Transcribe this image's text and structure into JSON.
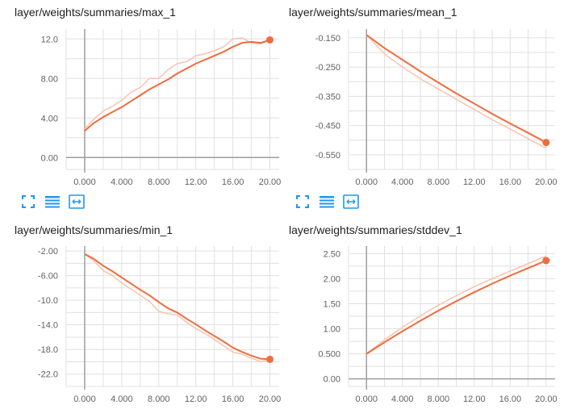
{
  "colors": {
    "line": "#ef6c3c",
    "line_raw": "#f9c3b0",
    "grid": "#e0e0e0",
    "axis": "#9e9e9e",
    "toolbar_icon": "#2196f3"
  },
  "toolbar_icons": [
    "fullscreen-icon",
    "data-table-icon",
    "fit-domain-icon"
  ],
  "charts": [
    {
      "title": "layer/weights/summaries/max_1",
      "chart_data": {
        "type": "line",
        "xlim": [
          -2,
          21
        ],
        "ylim": [
          -1.2,
          13.0
        ],
        "xticks": [
          0,
          4,
          8,
          12,
          16,
          20
        ],
        "xtick_labels": [
          "0.000",
          "4.000",
          "8.000",
          "12.00",
          "16.00",
          "20.00"
        ],
        "yticks": [
          0,
          4,
          8,
          12
        ],
        "ytick_labels": [
          "0.00",
          "4.00",
          "8.00",
          "12.0"
        ],
        "smoothed": {
          "x": [
            0,
            1,
            2,
            3,
            4,
            5,
            6,
            7,
            8,
            9,
            10,
            11,
            12,
            13,
            14,
            15,
            16,
            17,
            18,
            19,
            20
          ],
          "y": [
            2.7,
            3.5,
            4.1,
            4.6,
            5.1,
            5.7,
            6.3,
            6.9,
            7.4,
            7.9,
            8.5,
            9.0,
            9.5,
            9.9,
            10.3,
            10.7,
            11.2,
            11.6,
            11.7,
            11.6,
            11.9
          ]
        },
        "raw": {
          "x": [
            0,
            1,
            2,
            3,
            4,
            5,
            6,
            7,
            8,
            9,
            10,
            11,
            12,
            13,
            14,
            15,
            16,
            17,
            18,
            19,
            20
          ],
          "y": [
            2.9,
            3.9,
            4.7,
            5.2,
            5.8,
            6.6,
            7.1,
            8.0,
            8.0,
            8.9,
            9.5,
            9.7,
            10.3,
            10.5,
            10.8,
            11.2,
            12.0,
            12.1,
            11.6,
            11.5,
            11.9
          ]
        }
      }
    },
    {
      "title": "layer/weights/summaries/mean_1",
      "chart_data": {
        "type": "line",
        "xlim": [
          -2,
          21
        ],
        "ylim": [
          -0.6,
          -0.12
        ],
        "xticks": [
          0,
          4,
          8,
          12,
          16,
          20
        ],
        "xtick_labels": [
          "0.000",
          "4.000",
          "8.000",
          "12.00",
          "16.00",
          "20.00"
        ],
        "yticks": [
          -0.15,
          -0.25,
          -0.35,
          -0.45,
          -0.55
        ],
        "ytick_labels": [
          "-0.150",
          "-0.250",
          "-0.350",
          "-0.450",
          "-0.550"
        ],
        "smoothed": {
          "x": [
            0,
            2,
            4,
            6,
            8,
            10,
            12,
            14,
            16,
            18,
            20
          ],
          "y": [
            -0.14,
            -0.185,
            -0.225,
            -0.265,
            -0.303,
            -0.34,
            -0.375,
            -0.41,
            -0.443,
            -0.475,
            -0.508
          ]
        },
        "raw": {
          "x": [
            0,
            2,
            4,
            6,
            8,
            10,
            12,
            14,
            16,
            18,
            20
          ],
          "y": [
            -0.14,
            -0.205,
            -0.25,
            -0.29,
            -0.325,
            -0.36,
            -0.395,
            -0.43,
            -0.462,
            -0.495,
            -0.528
          ]
        }
      }
    },
    {
      "title": "layer/weights/summaries/min_1",
      "chart_data": {
        "type": "line",
        "xlim": [
          -2,
          21
        ],
        "ylim": [
          -24.0,
          -1.2
        ],
        "xticks": [
          0,
          4,
          8,
          12,
          16,
          20
        ],
        "xtick_labels": [
          "0.000",
          "4.000",
          "8.000",
          "12.00",
          "16.00",
          "20.00"
        ],
        "yticks": [
          -2,
          -6,
          -10,
          -14,
          -18,
          -22
        ],
        "ytick_labels": [
          "-2.00",
          "-6.00",
          "-10.0",
          "-14.0",
          "-18.0",
          "-22.0"
        ],
        "smoothed": {
          "x": [
            0,
            1,
            2,
            3,
            4,
            5,
            6,
            7,
            8,
            9,
            10,
            11,
            12,
            13,
            14,
            15,
            16,
            17,
            18,
            19,
            20
          ],
          "y": [
            -2.5,
            -3.3,
            -4.4,
            -5.3,
            -6.3,
            -7.3,
            -8.3,
            -9.2,
            -10.3,
            -11.3,
            -12.0,
            -13.0,
            -13.9,
            -14.9,
            -15.8,
            -16.7,
            -17.7,
            -18.4,
            -19.0,
            -19.5,
            -19.6
          ]
        },
        "raw": {
          "x": [
            0,
            1,
            2,
            3,
            4,
            5,
            6,
            7,
            8,
            9,
            10,
            11,
            12,
            13,
            14,
            15,
            16,
            17,
            18,
            19,
            20
          ],
          "y": [
            -2.5,
            -3.6,
            -5.2,
            -6.0,
            -7.2,
            -8.2,
            -9.2,
            -10.2,
            -11.8,
            -12.2,
            -12.4,
            -13.6,
            -14.6,
            -15.4,
            -16.4,
            -17.4,
            -18.4,
            -18.8,
            -19.4,
            -20.0,
            -19.6
          ]
        }
      }
    },
    {
      "title": "layer/weights/summaries/stddev_1",
      "chart_data": {
        "type": "line",
        "xlim": [
          -2,
          21
        ],
        "ylim": [
          -0.15,
          2.65
        ],
        "xticks": [
          0,
          4,
          8,
          12,
          16,
          20
        ],
        "xtick_labels": [
          "0.000",
          "4.000",
          "8.000",
          "12.00",
          "16.00",
          "20.00"
        ],
        "yticks": [
          0,
          0.5,
          1.0,
          1.5,
          2.0,
          2.5
        ],
        "ytick_labels": [
          "0.00",
          "0.500",
          "1.00",
          "1.50",
          "2.00",
          "2.50"
        ],
        "smoothed": {
          "x": [
            0,
            2,
            4,
            6,
            8,
            10,
            12,
            14,
            16,
            18,
            20
          ],
          "y": [
            0.5,
            0.73,
            0.95,
            1.16,
            1.36,
            1.55,
            1.73,
            1.9,
            2.06,
            2.21,
            2.36
          ]
        },
        "raw": {
          "x": [
            0,
            2,
            4,
            6,
            8,
            10,
            12,
            14,
            16,
            18,
            20
          ],
          "y": [
            0.5,
            0.78,
            1.03,
            1.26,
            1.47,
            1.66,
            1.84,
            2.0,
            2.15,
            2.3,
            2.45
          ]
        }
      }
    }
  ]
}
